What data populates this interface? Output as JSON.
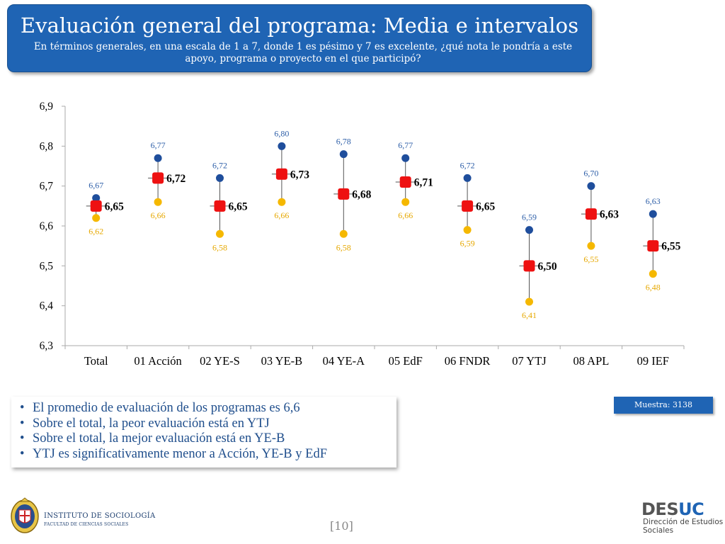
{
  "slide": {
    "title": "Evaluación general del programa: Media e intervalos",
    "subtitle": "En términos generales, en una escala de 1 a 7, donde 1 es pésimo y 7 es excelente, ¿qué nota le pondría a este apoyo, programa o proyecto en el que participó?",
    "bullets": [
      "El promedio de evaluación de los programas es 6,6",
      "Sobre el total, la peor evaluación está en YTJ",
      "Sobre el total, la mejor evaluación está en YE-B",
      "YTJ es significativamente menor a Acción, YE-B y EdF"
    ],
    "sample_label": "Muestra: 3138",
    "page_number": "[10]",
    "logo_left_line1": "INSTITUTO DE SOCIOLOGÍA",
    "logo_left_line2": "FACULTAD DE CIENCIAS SOCIALES",
    "logo_right_main_a": "DES",
    "logo_right_main_b": "UC",
    "logo_right_sub": "Dirección de Estudios\nSociales"
  },
  "colors": {
    "title_bg": "#1f64b4",
    "upper": "#1f4e9c",
    "lower": "#f5b800",
    "mean": "#ee1111",
    "upper_label": "#2e5fa8",
    "lower_label": "#e6a800",
    "text": "#1f4e8c"
  },
  "chart_data": {
    "type": "error-bar",
    "categories": [
      "Total",
      "01 Acción",
      "02 YE-S",
      "03 YE-B",
      "04 YE-A",
      "05 EdF",
      "06 FNDR",
      "07 YTJ",
      "08 APL",
      "09 IEF"
    ],
    "series": [
      {
        "values": [
          6.67,
          6.77,
          6.72,
          6.8,
          6.78,
          6.77,
          6.72,
          6.59,
          6.7,
          6.63
        ]
      },
      {
        "values": [
          6.65,
          6.72,
          6.65,
          6.73,
          6.68,
          6.71,
          6.65,
          6.5,
          6.63,
          6.55
        ]
      },
      {
        "values": [
          6.62,
          6.66,
          6.58,
          6.66,
          6.58,
          6.66,
          6.59,
          6.41,
          6.55,
          6.48
        ]
      }
    ],
    "upper_labels": [
      "6,67",
      "6,77",
      "6,72",
      "6,80",
      "6,78",
      "6,77",
      "6,72",
      "6,59",
      "6,70",
      "6,63"
    ],
    "mean_labels": [
      "6,65",
      "6,72",
      "6,65",
      "6,73",
      "6,68",
      "6,71",
      "6,65",
      "6,50",
      "6,63",
      "6,55"
    ],
    "lower_labels": [
      "6,62",
      "6,66",
      "6,58",
      "6,66",
      "6,58",
      "6,66",
      "6,59",
      "6,41",
      "6,55",
      "6,48"
    ],
    "ylim": [
      6.3,
      6.9
    ],
    "yticks": [
      6.3,
      6.4,
      6.5,
      6.6,
      6.7,
      6.8,
      6.9
    ],
    "ytick_labels": [
      "6,3",
      "6,4",
      "6,5",
      "6,6",
      "6,7",
      "6,8",
      "6,9"
    ],
    "grid": false,
    "legend": "none"
  }
}
